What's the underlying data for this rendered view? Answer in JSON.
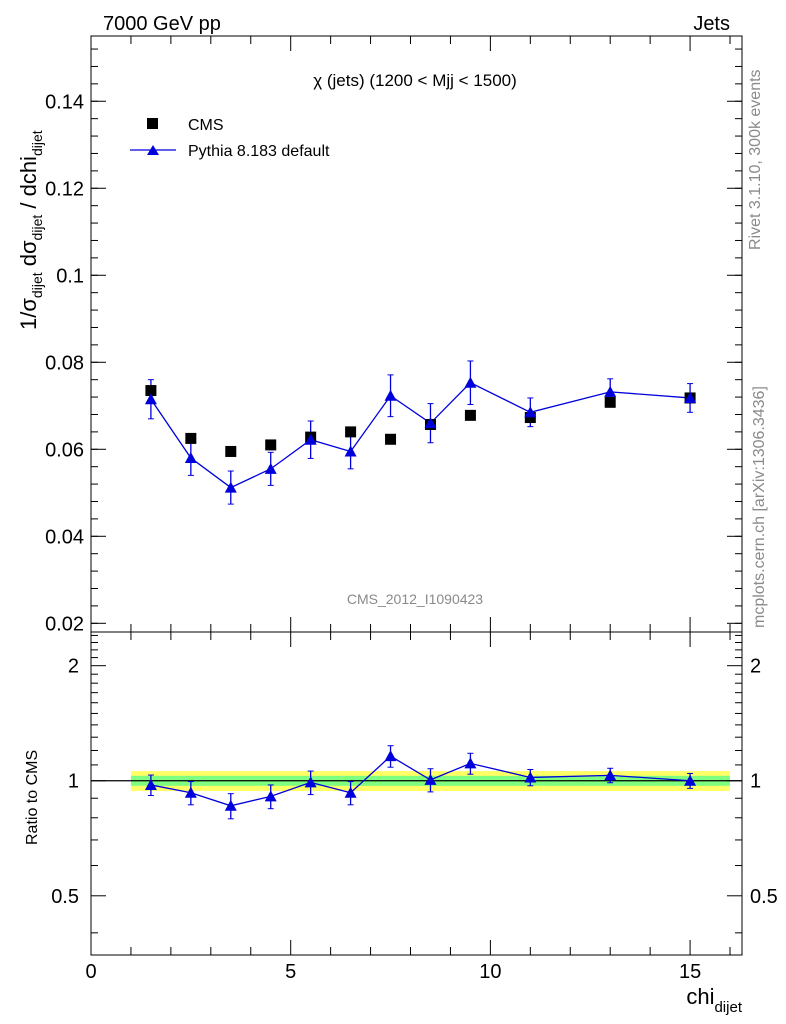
{
  "header": {
    "left": "7000 GeV pp",
    "right": "Jets"
  },
  "side_labels": {
    "rivet": "Rivet 3.1.10,  300k events",
    "mcplots": "mcplots.cern.ch [arXiv:1306.3436]"
  },
  "watermark": "CMS_2012_I1090423",
  "chart_data": [
    {
      "type": "scatter",
      "title": "χ (jets) (1200 < Mjj < 1500)",
      "xlabel": "chi_dijet",
      "ylabel": "1/σ_dijet dσ_dijet / dchi_dijet",
      "xlim": [
        0,
        16.3
      ],
      "ylim": [
        0.018,
        0.155
      ],
      "yticks": [
        0.02,
        0.04,
        0.06,
        0.08,
        0.1,
        0.12,
        0.14
      ],
      "yticklabels": [
        "0.02",
        "0.04",
        "0.06",
        "0.08",
        "0.1",
        "0.12",
        "0.14"
      ],
      "legend_position": "top-left",
      "series": [
        {
          "name": "CMS",
          "marker": "square",
          "color": "#000000",
          "x": [
            1.5,
            2.5,
            3.5,
            4.5,
            5.5,
            6.5,
            7.5,
            8.5,
            9.5,
            11,
            13,
            15
          ],
          "y": [
            0.0735,
            0.0625,
            0.0595,
            0.061,
            0.0628,
            0.064,
            0.0623,
            0.0657,
            0.0678,
            0.0673,
            0.0708,
            0.0718
          ]
        },
        {
          "name": "Pythia 8.183 default",
          "marker": "triangle",
          "color": "#0000dd",
          "x": [
            1.5,
            2.5,
            3.5,
            4.5,
            5.5,
            6.5,
            7.5,
            8.5,
            9.5,
            11,
            13,
            15
          ],
          "y": [
            0.0715,
            0.058,
            0.0512,
            0.0555,
            0.0622,
            0.0595,
            0.0723,
            0.066,
            0.0753,
            0.0685,
            0.0732,
            0.0718
          ],
          "yerr": [
            0.0045,
            0.004,
            0.0038,
            0.0038,
            0.0043,
            0.004,
            0.0048,
            0.0045,
            0.005,
            0.0033,
            0.003,
            0.0033
          ]
        }
      ]
    },
    {
      "type": "line",
      "xlabel": "chi_dijet",
      "ylabel": "Ratio to CMS",
      "xlim": [
        0,
        16.3
      ],
      "ylim": [
        0.35,
        2.45
      ],
      "log_scale_y": true,
      "xticks": [
        0,
        5,
        10,
        15
      ],
      "xticklabels": [
        "0",
        "5",
        "10",
        "15"
      ],
      "yticks": [
        0.5,
        1,
        2
      ],
      "yticklabels": [
        "0.5",
        "1",
        "2"
      ],
      "reference_band": {
        "x": [
          1,
          16
        ],
        "inner": [
          0.97,
          1.03
        ],
        "outer": [
          0.94,
          1.06
        ],
        "colors": [
          "#7fff7f",
          "#ffff66"
        ]
      },
      "series": [
        {
          "name": "Pythia 8.183 default",
          "color": "#0000dd",
          "x": [
            1.5,
            2.5,
            3.5,
            4.5,
            5.5,
            6.5,
            7.5,
            8.5,
            9.5,
            11,
            13,
            15
          ],
          "y": [
            0.975,
            0.93,
            0.86,
            0.91,
            0.99,
            0.93,
            1.16,
            1.005,
            1.11,
            1.02,
            1.033,
            1.0
          ],
          "yerr": [
            0.06,
            0.065,
            0.065,
            0.065,
            0.07,
            0.065,
            0.075,
            0.07,
            0.07,
            0.05,
            0.045,
            0.045
          ]
        }
      ]
    }
  ]
}
